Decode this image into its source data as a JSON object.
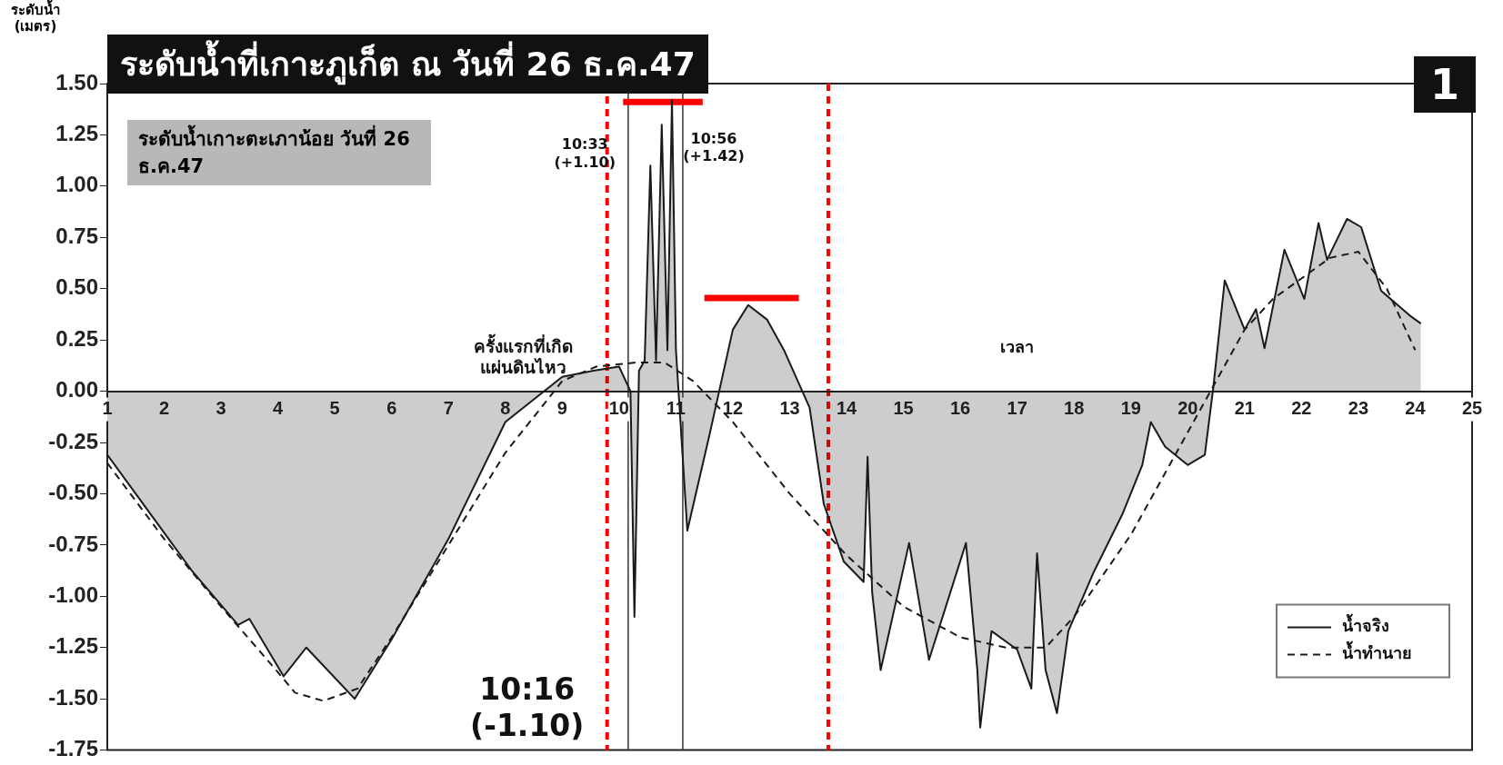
{
  "chart_data": {
    "type": "area",
    "title": "ระดับน้ำที่เกาะภูเก็ต ณ วันที่ 26 ธ.ค.47",
    "subtitle": "ระดับน้ำเกาะตะเภาน้อย วันที่ 26 ธ.ค.47",
    "ylabel": "ระดับน้ำ (เมตร)",
    "xlabel": "เวลา",
    "xlim": [
      1,
      25
    ],
    "xticks": [
      1,
      2,
      3,
      4,
      5,
      6,
      7,
      8,
      9,
      10,
      11,
      12,
      13,
      14,
      15,
      16,
      17,
      18,
      19,
      20,
      21,
      22,
      23,
      24,
      25
    ],
    "ylim": [
      -1.75,
      1.5
    ],
    "yticks": [
      {
        "value": -1.75,
        "label": "-1.75"
      },
      {
        "value": -1.5,
        "label": "-1.50"
      },
      {
        "value": -1.25,
        "label": "-1.25"
      },
      {
        "value": -1,
        "label": "-1.00"
      },
      {
        "value": -0.75,
        "label": "-0.75"
      },
      {
        "value": -0.5,
        "label": "-0.50"
      },
      {
        "value": -0.25,
        "label": "-0.25"
      },
      {
        "value": 0,
        "label": "0.00"
      },
      {
        "value": 0.25,
        "label": "0.25"
      },
      {
        "value": 0.5,
        "label": "0.50"
      },
      {
        "value": 0.75,
        "label": "0.75"
      },
      {
        "value": 1,
        "label": "1.00"
      },
      {
        "value": 1.25,
        "label": "1.25"
      },
      {
        "value": 1.5,
        "label": "1.50"
      }
    ],
    "grid": false,
    "legend": "bottom right",
    "marker": "none",
    "series": [
      {
        "name": "น้ำจริง",
        "type": "area",
        "color": "#1a1a1a",
        "x": [
          1,
          2,
          2.5,
          3.3,
          3.5,
          4.1,
          4.5,
          5.35,
          6,
          7,
          8,
          9,
          9.55,
          10,
          10.2,
          10.27,
          10.35,
          10.45,
          10.55,
          10.65,
          10.75,
          10.85,
          10.93,
          11,
          11.2,
          11.6,
          12,
          12.27,
          12.6,
          12.9,
          13.35,
          13.6,
          13.95,
          14.3,
          14.37,
          14.45,
          14.6,
          15.1,
          15.45,
          16.1,
          16.3,
          16.35,
          16.55,
          17,
          17.25,
          17.35,
          17.5,
          17.7,
          17.9,
          18.35,
          18.85,
          19.2,
          19.35,
          19.6,
          20,
          20.3,
          20.45,
          20.65,
          21,
          21.2,
          21.35,
          21.7,
          22.05,
          22.3,
          22.45,
          22.8,
          23.05,
          23.4,
          23.9,
          24.1
        ],
        "values": [
          -0.31,
          -0.69,
          -0.88,
          -1.14,
          -1.11,
          -1.39,
          -1.25,
          -1.5,
          -1.21,
          -0.72,
          -0.15,
          0.07,
          0.1,
          0.12,
          0,
          -1.1,
          0.1,
          0.15,
          1.1,
          0.15,
          1.3,
          0.2,
          1.42,
          0.2,
          -0.68,
          -0.2,
          0.3,
          0.42,
          0.35,
          0.2,
          -0.08,
          -0.55,
          -0.83,
          -0.93,
          -0.32,
          -0.98,
          -1.36,
          -0.74,
          -1.31,
          -0.74,
          -1.36,
          -1.64,
          -1.17,
          -1.26,
          -1.45,
          -0.79,
          -1.36,
          -1.57,
          -1.17,
          -0.88,
          -0.6,
          -0.36,
          -0.15,
          -0.27,
          -0.36,
          -0.31,
          0.02,
          0.54,
          0.3,
          0.4,
          0.21,
          0.69,
          0.45,
          0.82,
          0.64,
          0.84,
          0.8,
          0.49,
          0.37,
          0.33
        ]
      },
      {
        "name": "น้ำทำนาย",
        "type": "line",
        "line_style": "dashed",
        "color": "#1a1a1a",
        "x": [
          1,
          2,
          3,
          4,
          4.3,
          4.8,
          5.4,
          6,
          7,
          8,
          9,
          9.6,
          10.3,
          10.8,
          11.3,
          12,
          13,
          13.5,
          14,
          15,
          16,
          16.8,
          17.5,
          18,
          19,
          19.5,
          20,
          20.5,
          21,
          21.5,
          22,
          22.5,
          23,
          23.5,
          24
        ],
        "values": [
          -0.35,
          -0.72,
          -1.05,
          -1.37,
          -1.47,
          -1.51,
          -1.45,
          -1.2,
          -0.75,
          -0.3,
          0.05,
          0.12,
          0.14,
          0.14,
          0.05,
          -0.15,
          -0.5,
          -0.65,
          -0.8,
          -1.05,
          -1.2,
          -1.25,
          -1.25,
          -1.1,
          -0.7,
          -0.45,
          -0.2,
          0.05,
          0.3,
          0.45,
          0.55,
          0.65,
          0.68,
          0.5,
          0.2
        ]
      },
      {
        "type": "line",
        "color": "#ff0000",
        "x": [
          10.07,
          11.47
        ],
        "values": [
          1.41,
          1.41
        ]
      },
      {
        "type": "line",
        "color": "#ff0000",
        "x": [
          11.5,
          13.16
        ],
        "values": [
          0.455,
          0.455
        ]
      }
    ],
    "ref_lines": [
      {
        "axis": "x",
        "value": 9.79,
        "color": "#ff0000",
        "line_style": "dashed"
      },
      {
        "axis": "x",
        "value": 13.68,
        "color": "#ff0000",
        "line_style": "dashed"
      },
      {
        "axis": "x",
        "value": 10.16,
        "color": "#333333"
      },
      {
        "axis": "x",
        "value": 11.12,
        "color": "#333333"
      }
    ],
    "annotations": [
      {
        "text": "10:33\n(+1.10)",
        "x": 10.55,
        "y": 1.1
      },
      {
        "text": "10:56\n(+1.42)",
        "x": 10.93,
        "y": 1.42
      },
      {
        "text": "10:16\n(-1.10)",
        "x": 10.27,
        "y": -1.1
      },
      {
        "text": "ครั้งแรกที่เกิด\nแผ่นดินไหว",
        "x": 9.6,
        "y": 0.1
      },
      "1"
    ]
  }
}
